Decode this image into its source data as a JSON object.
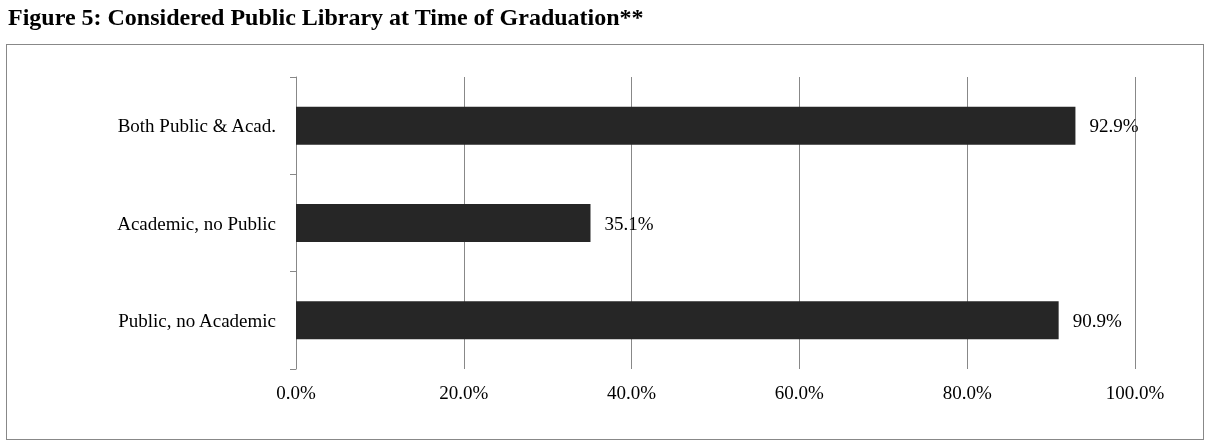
{
  "chart_data": {
    "type": "bar",
    "orientation": "horizontal",
    "title": "Figure 5: Considered Public Library at Time of Graduation**",
    "categories": [
      "Both Public & Acad.",
      "Academic, no Public",
      "Public, no Academic"
    ],
    "values": [
      92.9,
      35.1,
      90.9
    ],
    "color": "#262626",
    "value_labels": [
      "92.9%",
      "35.1%",
      "90.9%"
    ],
    "xlim": [
      0,
      100
    ],
    "xticks": [
      {
        "value": 0,
        "label": "0.0%"
      },
      {
        "value": 20,
        "label": "20.0%"
      },
      {
        "value": 40,
        "label": "40.0%"
      },
      {
        "value": 60,
        "label": "60.0%"
      },
      {
        "value": 80,
        "label": "80.0%"
      },
      {
        "value": 100,
        "label": "100.0%"
      }
    ],
    "grid": "x"
  }
}
